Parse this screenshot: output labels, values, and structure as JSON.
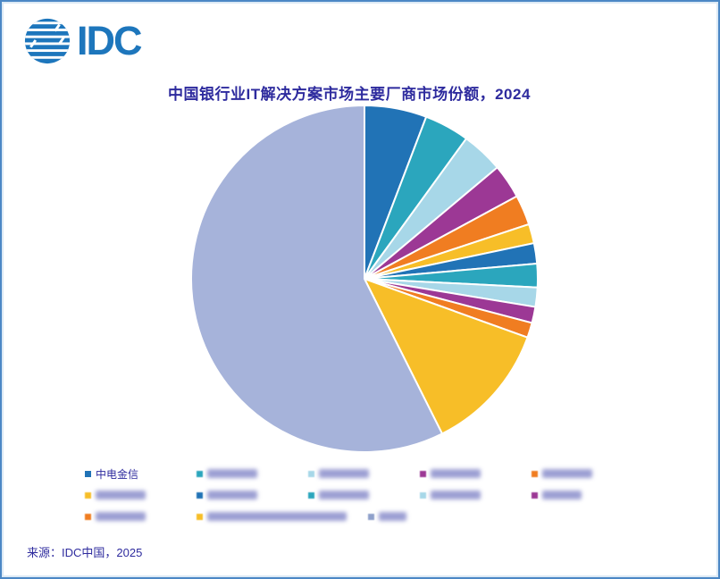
{
  "logo": {
    "text": "IDC",
    "color": "#1d76bc",
    "globe_icon": "idc-globe-icon"
  },
  "title": {
    "text": "中国银行业IT解决方案市场主要厂商市场份额，2024",
    "color": "#2e2b9e"
  },
  "source": {
    "text": "来源：IDC中国，2025"
  },
  "palette": {
    "blue": "#2173b6",
    "teal": "#2ba6bd",
    "light_blue": "#a7d7e8",
    "purple": "#9c3895",
    "orange": "#f07d21",
    "yellow": "#f7be28",
    "lavender": "#a6b3da",
    "lavender_marker": "#8fa0cb",
    "text_indigo": "#2e2b9e",
    "border_blue": "#4b87c5"
  },
  "chart_data": {
    "type": "pie",
    "title": "中国银行业IT解决方案市场主要厂商市场份额，2024",
    "legend_position": "bottom",
    "clockwise": true,
    "start_angle_deg": 0,
    "note": "No numeric data labels are shown in the figure; slice values are percentages estimated from arc angles. All legend labels except the first are blurred in the source image.",
    "slices": [
      {
        "label": "中电金信",
        "label_blurred": false,
        "value": 5.8,
        "color": "#2173b6"
      },
      {
        "label": "",
        "label_blurred": true,
        "approx_chars": 4,
        "value": 4.2,
        "color": "#2ba6bd"
      },
      {
        "label": "",
        "label_blurred": true,
        "approx_chars": 4,
        "value": 3.9,
        "color": "#a7d7e8"
      },
      {
        "label": "",
        "label_blurred": true,
        "approx_chars": 4,
        "value": 3.2,
        "color": "#9c3895"
      },
      {
        "label": "",
        "label_blurred": true,
        "approx_chars": 4,
        "value": 2.8,
        "color": "#f07d21"
      },
      {
        "label": "",
        "label_blurred": true,
        "approx_chars": 4,
        "value": 1.8,
        "color": "#f7be28"
      },
      {
        "label": "",
        "label_blurred": true,
        "approx_chars": 4,
        "value": 1.9,
        "color": "#2173b6"
      },
      {
        "label": "",
        "label_blurred": true,
        "approx_chars": 4,
        "value": 2.2,
        "color": "#2ba6bd"
      },
      {
        "label": "",
        "label_blurred": true,
        "approx_chars": 4,
        "value": 1.8,
        "color": "#a7d7e8"
      },
      {
        "label": "",
        "label_blurred": true,
        "approx_chars": 3,
        "value": 1.5,
        "color": "#9c3895"
      },
      {
        "label": "",
        "label_blurred": true,
        "approx_chars": 4,
        "value": 1.4,
        "color": "#f07d21"
      },
      {
        "label": "",
        "label_blurred": true,
        "approx_chars": 12,
        "value": 12.1,
        "color": "#f7be28"
      },
      {
        "label": "",
        "label_blurred": true,
        "approx_chars": 2,
        "value": 57.4,
        "color": "#a6b3da",
        "legend_marker_color": "#8fa0cb"
      }
    ]
  },
  "legend": {
    "rows": [
      [
        0,
        1,
        2,
        3,
        4
      ],
      [
        5,
        6,
        7,
        8,
        9
      ],
      [
        10,
        11,
        12
      ]
    ]
  }
}
